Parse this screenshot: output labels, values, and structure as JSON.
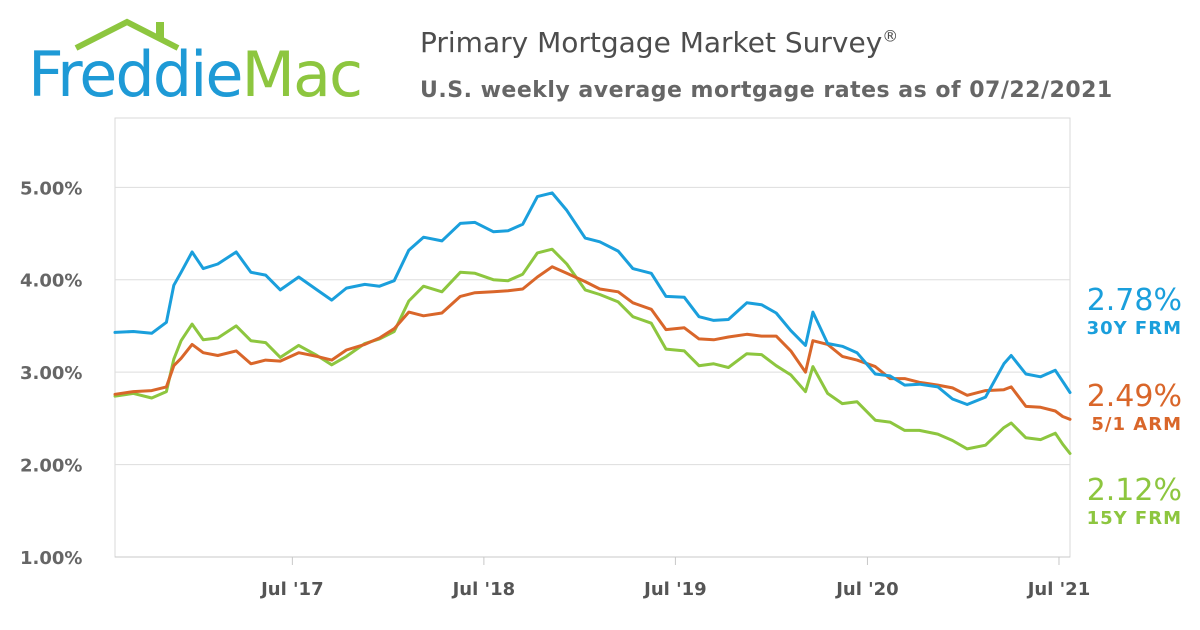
{
  "brand": {
    "logo_word1": "Freddie",
    "logo_word2": "Mac",
    "blue": "#1e9ad6",
    "green": "#8dc63f"
  },
  "header": {
    "title": "Primary Mortgage Market Survey",
    "title_mark": "®",
    "subtitle": "U.S. weekly average mortgage rates as of 07/22/2021"
  },
  "latest": [
    {
      "value": "2.78%",
      "label": "30Y FRM",
      "color": "#1a9fdc"
    },
    {
      "value": "2.49%",
      "label": "5/1 ARM",
      "color": "#d9662a"
    },
    {
      "value": "2.12%",
      "label": "15Y FRM",
      "color": "#8dc63f"
    }
  ],
  "chart_data": {
    "type": "line",
    "title": "Primary Mortgage Market Survey",
    "subtitle": "U.S. weekly average mortgage rates as of 07/22/2021",
    "x_range": [
      "2016-07-28",
      "2021-07-22"
    ],
    "ylim": [
      1.0,
      5.75
    ],
    "y_ticks": [
      1.0,
      2.0,
      3.0,
      4.0,
      5.0
    ],
    "y_tick_labels": [
      "1.00%",
      "2.00%",
      "3.00%",
      "4.00%",
      "5.00%"
    ],
    "x_ticks": [
      "2017-07-01",
      "2018-07-01",
      "2019-07-01",
      "2020-07-01",
      "2021-07-01"
    ],
    "x_tick_labels": [
      "Jul '17",
      "Jul '18",
      "Jul '19",
      "Jul '20",
      "Jul '21"
    ],
    "grid": "horizontal",
    "series": [
      {
        "name": "30Y FRM",
        "color": "#1a9fdc",
        "points": [
          [
            "2016-07-28",
            3.43
          ],
          [
            "2016-09-01",
            3.44
          ],
          [
            "2016-10-06",
            3.42
          ],
          [
            "2016-11-03",
            3.54
          ],
          [
            "2016-11-17",
            3.94
          ],
          [
            "2016-12-01",
            4.08
          ],
          [
            "2016-12-22",
            4.3
          ],
          [
            "2017-01-12",
            4.12
          ],
          [
            "2017-02-09",
            4.17
          ],
          [
            "2017-03-16",
            4.3
          ],
          [
            "2017-04-13",
            4.08
          ],
          [
            "2017-05-11",
            4.05
          ],
          [
            "2017-06-08",
            3.89
          ],
          [
            "2017-07-13",
            4.03
          ],
          [
            "2017-08-17",
            3.89
          ],
          [
            "2017-09-14",
            3.78
          ],
          [
            "2017-10-12",
            3.91
          ],
          [
            "2017-11-16",
            3.95
          ],
          [
            "2017-12-14",
            3.93
          ],
          [
            "2018-01-11",
            3.99
          ],
          [
            "2018-02-08",
            4.32
          ],
          [
            "2018-03-08",
            4.46
          ],
          [
            "2018-04-12",
            4.42
          ],
          [
            "2018-05-17",
            4.61
          ],
          [
            "2018-06-14",
            4.62
          ],
          [
            "2018-07-19",
            4.52
          ],
          [
            "2018-08-16",
            4.53
          ],
          [
            "2018-09-13",
            4.6
          ],
          [
            "2018-10-11",
            4.9
          ],
          [
            "2018-11-08",
            4.94
          ],
          [
            "2018-12-06",
            4.75
          ],
          [
            "2019-01-10",
            4.45
          ],
          [
            "2019-02-07",
            4.41
          ],
          [
            "2019-03-14",
            4.31
          ],
          [
            "2019-04-11",
            4.12
          ],
          [
            "2019-05-16",
            4.07
          ],
          [
            "2019-06-13",
            3.82
          ],
          [
            "2019-07-18",
            3.81
          ],
          [
            "2019-08-15",
            3.6
          ],
          [
            "2019-09-12",
            3.56
          ],
          [
            "2019-10-10",
            3.57
          ],
          [
            "2019-11-14",
            3.75
          ],
          [
            "2019-12-12",
            3.73
          ],
          [
            "2020-01-09",
            3.64
          ],
          [
            "2020-02-06",
            3.45
          ],
          [
            "2020-03-05",
            3.29
          ],
          [
            "2020-03-19",
            3.65
          ],
          [
            "2020-04-16",
            3.31
          ],
          [
            "2020-05-14",
            3.28
          ],
          [
            "2020-06-11",
            3.21
          ],
          [
            "2020-07-16",
            2.98
          ],
          [
            "2020-08-13",
            2.96
          ],
          [
            "2020-09-10",
            2.86
          ],
          [
            "2020-10-08",
            2.87
          ],
          [
            "2020-11-12",
            2.84
          ],
          [
            "2020-12-10",
            2.71
          ],
          [
            "2021-01-07",
            2.65
          ],
          [
            "2021-02-11",
            2.73
          ],
          [
            "2021-03-18",
            3.09
          ],
          [
            "2021-04-01",
            3.18
          ],
          [
            "2021-04-29",
            2.98
          ],
          [
            "2021-05-27",
            2.95
          ],
          [
            "2021-06-24",
            3.02
          ],
          [
            "2021-07-08",
            2.9
          ],
          [
            "2021-07-22",
            2.78
          ]
        ]
      },
      {
        "name": "5/1 ARM",
        "color": "#d9662a",
        "points": [
          [
            "2016-07-28",
            2.76
          ],
          [
            "2016-09-01",
            2.79
          ],
          [
            "2016-10-06",
            2.8
          ],
          [
            "2016-11-03",
            2.84
          ],
          [
            "2016-11-17",
            3.07
          ],
          [
            "2016-12-01",
            3.15
          ],
          [
            "2016-12-22",
            3.3
          ],
          [
            "2017-01-12",
            3.21
          ],
          [
            "2017-02-09",
            3.18
          ],
          [
            "2017-03-16",
            3.23
          ],
          [
            "2017-04-13",
            3.09
          ],
          [
            "2017-05-11",
            3.13
          ],
          [
            "2017-06-08",
            3.12
          ],
          [
            "2017-07-13",
            3.21
          ],
          [
            "2017-08-17",
            3.17
          ],
          [
            "2017-09-14",
            3.13
          ],
          [
            "2017-10-12",
            3.24
          ],
          [
            "2017-11-16",
            3.3
          ],
          [
            "2017-12-14",
            3.37
          ],
          [
            "2018-01-11",
            3.47
          ],
          [
            "2018-02-08",
            3.65
          ],
          [
            "2018-03-08",
            3.61
          ],
          [
            "2018-04-12",
            3.64
          ],
          [
            "2018-05-17",
            3.82
          ],
          [
            "2018-06-14",
            3.86
          ],
          [
            "2018-07-19",
            3.87
          ],
          [
            "2018-08-16",
            3.88
          ],
          [
            "2018-09-13",
            3.9
          ],
          [
            "2018-10-11",
            4.03
          ],
          [
            "2018-11-08",
            4.14
          ],
          [
            "2018-12-06",
            4.07
          ],
          [
            "2019-01-10",
            3.98
          ],
          [
            "2019-02-07",
            3.9
          ],
          [
            "2019-03-14",
            3.87
          ],
          [
            "2019-04-11",
            3.75
          ],
          [
            "2019-05-16",
            3.68
          ],
          [
            "2019-06-13",
            3.46
          ],
          [
            "2019-07-18",
            3.48
          ],
          [
            "2019-08-15",
            3.36
          ],
          [
            "2019-09-12",
            3.35
          ],
          [
            "2019-10-10",
            3.38
          ],
          [
            "2019-11-14",
            3.41
          ],
          [
            "2019-12-12",
            3.39
          ],
          [
            "2020-01-09",
            3.39
          ],
          [
            "2020-02-06",
            3.23
          ],
          [
            "2020-03-05",
            3.0
          ],
          [
            "2020-03-19",
            3.34
          ],
          [
            "2020-04-16",
            3.3
          ],
          [
            "2020-05-14",
            3.17
          ],
          [
            "2020-06-11",
            3.13
          ],
          [
            "2020-07-16",
            3.06
          ],
          [
            "2020-08-13",
            2.93
          ],
          [
            "2020-09-10",
            2.93
          ],
          [
            "2020-10-08",
            2.89
          ],
          [
            "2020-11-12",
            2.86
          ],
          [
            "2020-12-10",
            2.83
          ],
          [
            "2021-01-07",
            2.75
          ],
          [
            "2021-02-11",
            2.8
          ],
          [
            "2021-03-18",
            2.81
          ],
          [
            "2021-04-01",
            2.84
          ],
          [
            "2021-04-29",
            2.63
          ],
          [
            "2021-05-27",
            2.62
          ],
          [
            "2021-06-24",
            2.58
          ],
          [
            "2021-07-08",
            2.52
          ],
          [
            "2021-07-22",
            2.49
          ]
        ]
      },
      {
        "name": "15Y FRM",
        "color": "#8dc63f",
        "points": [
          [
            "2016-07-28",
            2.74
          ],
          [
            "2016-09-01",
            2.77
          ],
          [
            "2016-10-06",
            2.72
          ],
          [
            "2016-11-03",
            2.79
          ],
          [
            "2016-11-17",
            3.14
          ],
          [
            "2016-12-01",
            3.34
          ],
          [
            "2016-12-22",
            3.52
          ],
          [
            "2017-01-12",
            3.35
          ],
          [
            "2017-02-09",
            3.37
          ],
          [
            "2017-03-16",
            3.5
          ],
          [
            "2017-04-13",
            3.34
          ],
          [
            "2017-05-11",
            3.32
          ],
          [
            "2017-06-08",
            3.16
          ],
          [
            "2017-07-13",
            3.29
          ],
          [
            "2017-08-17",
            3.18
          ],
          [
            "2017-09-14",
            3.08
          ],
          [
            "2017-10-12",
            3.17
          ],
          [
            "2017-11-16",
            3.31
          ],
          [
            "2017-12-14",
            3.36
          ],
          [
            "2018-01-11",
            3.44
          ],
          [
            "2018-02-08",
            3.77
          ],
          [
            "2018-03-08",
            3.93
          ],
          [
            "2018-04-12",
            3.87
          ],
          [
            "2018-05-17",
            4.08
          ],
          [
            "2018-06-14",
            4.07
          ],
          [
            "2018-07-19",
            4.0
          ],
          [
            "2018-08-16",
            3.99
          ],
          [
            "2018-09-13",
            4.06
          ],
          [
            "2018-10-11",
            4.29
          ],
          [
            "2018-11-08",
            4.33
          ],
          [
            "2018-12-06",
            4.17
          ],
          [
            "2019-01-10",
            3.89
          ],
          [
            "2019-02-07",
            3.84
          ],
          [
            "2019-03-14",
            3.76
          ],
          [
            "2019-04-11",
            3.6
          ],
          [
            "2019-05-16",
            3.53
          ],
          [
            "2019-06-13",
            3.25
          ],
          [
            "2019-07-18",
            3.23
          ],
          [
            "2019-08-15",
            3.07
          ],
          [
            "2019-09-12",
            3.09
          ],
          [
            "2019-10-10",
            3.05
          ],
          [
            "2019-11-14",
            3.2
          ],
          [
            "2019-12-12",
            3.19
          ],
          [
            "2020-01-09",
            3.07
          ],
          [
            "2020-02-06",
            2.97
          ],
          [
            "2020-03-05",
            2.79
          ],
          [
            "2020-03-19",
            3.06
          ],
          [
            "2020-04-16",
            2.77
          ],
          [
            "2020-05-14",
            2.66
          ],
          [
            "2020-06-11",
            2.68
          ],
          [
            "2020-07-16",
            2.48
          ],
          [
            "2020-08-13",
            2.46
          ],
          [
            "2020-09-10",
            2.37
          ],
          [
            "2020-10-08",
            2.37
          ],
          [
            "2020-11-12",
            2.33
          ],
          [
            "2020-12-10",
            2.26
          ],
          [
            "2021-01-07",
            2.17
          ],
          [
            "2021-02-11",
            2.21
          ],
          [
            "2021-03-18",
            2.4
          ],
          [
            "2021-04-01",
            2.45
          ],
          [
            "2021-04-29",
            2.29
          ],
          [
            "2021-05-27",
            2.27
          ],
          [
            "2021-06-24",
            2.34
          ],
          [
            "2021-07-08",
            2.22
          ],
          [
            "2021-07-22",
            2.12
          ]
        ]
      }
    ]
  }
}
